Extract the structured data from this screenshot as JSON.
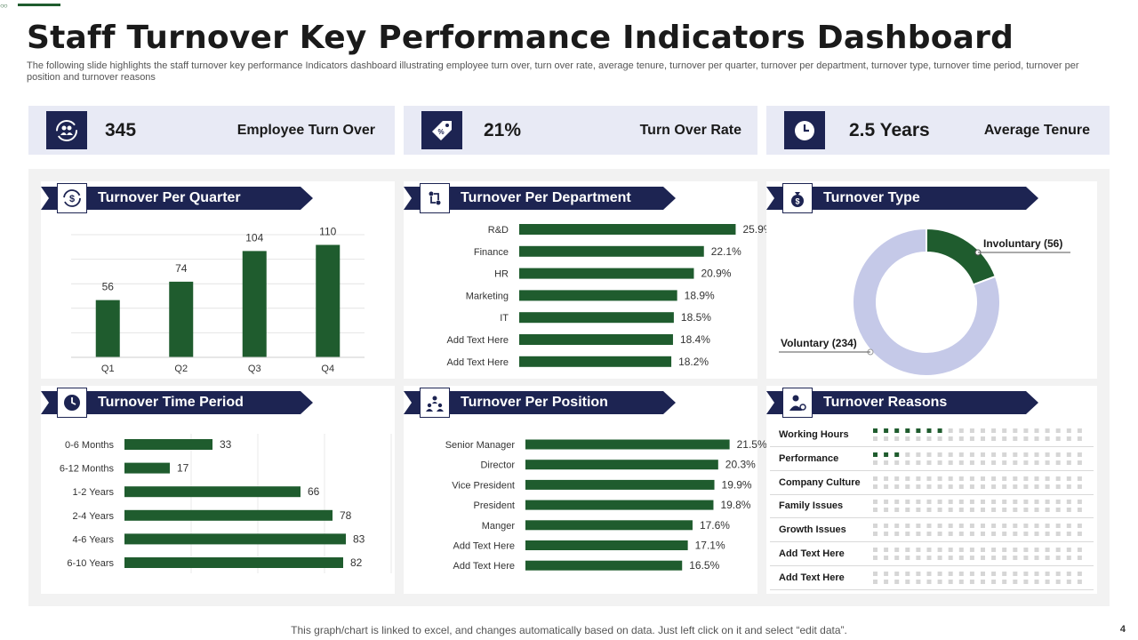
{
  "title": "Staff Turnover Key Performance Indicators Dashboard",
  "subtitle": "The following slide highlights the staff turnover key performance Indicators dashboard illustrating employee turn over, turn over rate, average tenure, turnover per quarter, turnover per department, turnover type, turnover time period, turnover per position and turnover reasons",
  "kpis": [
    {
      "value": "345",
      "label": "Employee Turn Over",
      "icon": "people-cycle-icon"
    },
    {
      "value": "21%",
      "label": "Turn Over Rate",
      "icon": "percent-tag-icon"
    },
    {
      "value": "2.5 Years",
      "label": "Average Tenure",
      "icon": "clock-icon"
    }
  ],
  "panels": {
    "quarter": {
      "title": "Turnover Per Quarter",
      "icon": "dollar-cycle-icon"
    },
    "department": {
      "title": "Turnover Per Department",
      "icon": "org-structure-icon"
    },
    "type": {
      "title": "Turnover Type",
      "icon": "money-bag-icon"
    },
    "time": {
      "title": "Turnover Time Period",
      "icon": "clock-icon"
    },
    "position": {
      "title": "Turnover Per Position",
      "icon": "team-icon"
    },
    "reasons": {
      "title": "Turnover Reasons",
      "icon": "person-gear-icon"
    }
  },
  "colors": {
    "navy": "#1d2452",
    "green": "#1f5c2e",
    "lavender": "#c5c9e8",
    "kpi_bg": "#e8eaf5"
  },
  "chart_data": [
    {
      "id": "quarter",
      "type": "bar",
      "title": "Turnover Per Quarter",
      "categories": [
        "Q1",
        "Q2",
        "Q3",
        "Q4"
      ],
      "values": [
        56,
        74,
        104,
        110
      ],
      "ylim": [
        0,
        120
      ],
      "grid": true
    },
    {
      "id": "department",
      "type": "bar",
      "orientation": "horizontal",
      "title": "Turnover Per Department",
      "categories": [
        "R&D",
        "Finance",
        "HR",
        "Marketing",
        "IT",
        "Add Text Here",
        "Add Text Here"
      ],
      "values": [
        25.9,
        22.1,
        20.9,
        18.9,
        18.5,
        18.4,
        18.2
      ],
      "value_labels": [
        "25.9%",
        "22.1%",
        "20.9%",
        "18.9%",
        "18.5%",
        "18.4%",
        "18.2%"
      ],
      "xlim": [
        0,
        30
      ]
    },
    {
      "id": "type",
      "type": "pie",
      "donut": true,
      "title": "Turnover Type",
      "slices": [
        {
          "label": "Involuntary",
          "value": 56,
          "display": "Involuntary  (56)"
        },
        {
          "label": "Voluntary",
          "value": 234,
          "display": "Voluntary  (234)"
        }
      ]
    },
    {
      "id": "time",
      "type": "bar",
      "orientation": "horizontal",
      "title": "Turnover Time Period",
      "categories": [
        "0-6 Months",
        "6-12 Months",
        "1-2 Years",
        "2-4 Years",
        "4-6 Years",
        "6-10 Years"
      ],
      "values": [
        33,
        17,
        66,
        78,
        83,
        82
      ],
      "value_labels": [
        "33",
        "17",
        "66",
        "78",
        "83",
        "82"
      ],
      "xlim": [
        0,
        100
      ],
      "grid": true
    },
    {
      "id": "position",
      "type": "bar",
      "orientation": "horizontal",
      "title": "Turnover Per Position",
      "categories": [
        "Senior Manager",
        "Director",
        "Vice President",
        "President",
        "Manger",
        "Add Text Here",
        "Add Text Here"
      ],
      "values": [
        21.5,
        20.3,
        19.9,
        19.8,
        17.6,
        17.1,
        16.5
      ],
      "value_labels": [
        "21.5%",
        "20.3%",
        "19.9%",
        "19.8%",
        "17.6%",
        "17.1%",
        "16.5%"
      ],
      "xlim": [
        0,
        25
      ]
    },
    {
      "id": "reasons",
      "type": "table",
      "title": "Turnover Reasons",
      "total_dots": 40,
      "rows": [
        {
          "label": "Working Hours",
          "filled": 7
        },
        {
          "label": "Performance",
          "filled": 3
        },
        {
          "label": "Company Culture",
          "filled": 0
        },
        {
          "label": "Family Issues",
          "filled": 0
        },
        {
          "label": "Growth Issues",
          "filled": 0
        },
        {
          "label": "Add Text Here",
          "filled": 0
        },
        {
          "label": "Add Text Here",
          "filled": 0
        }
      ]
    }
  ],
  "footer": "This graph/chart is linked to excel,  and changes automatically based on data. Just left click on it and select “edit data”.",
  "page_number": "4"
}
